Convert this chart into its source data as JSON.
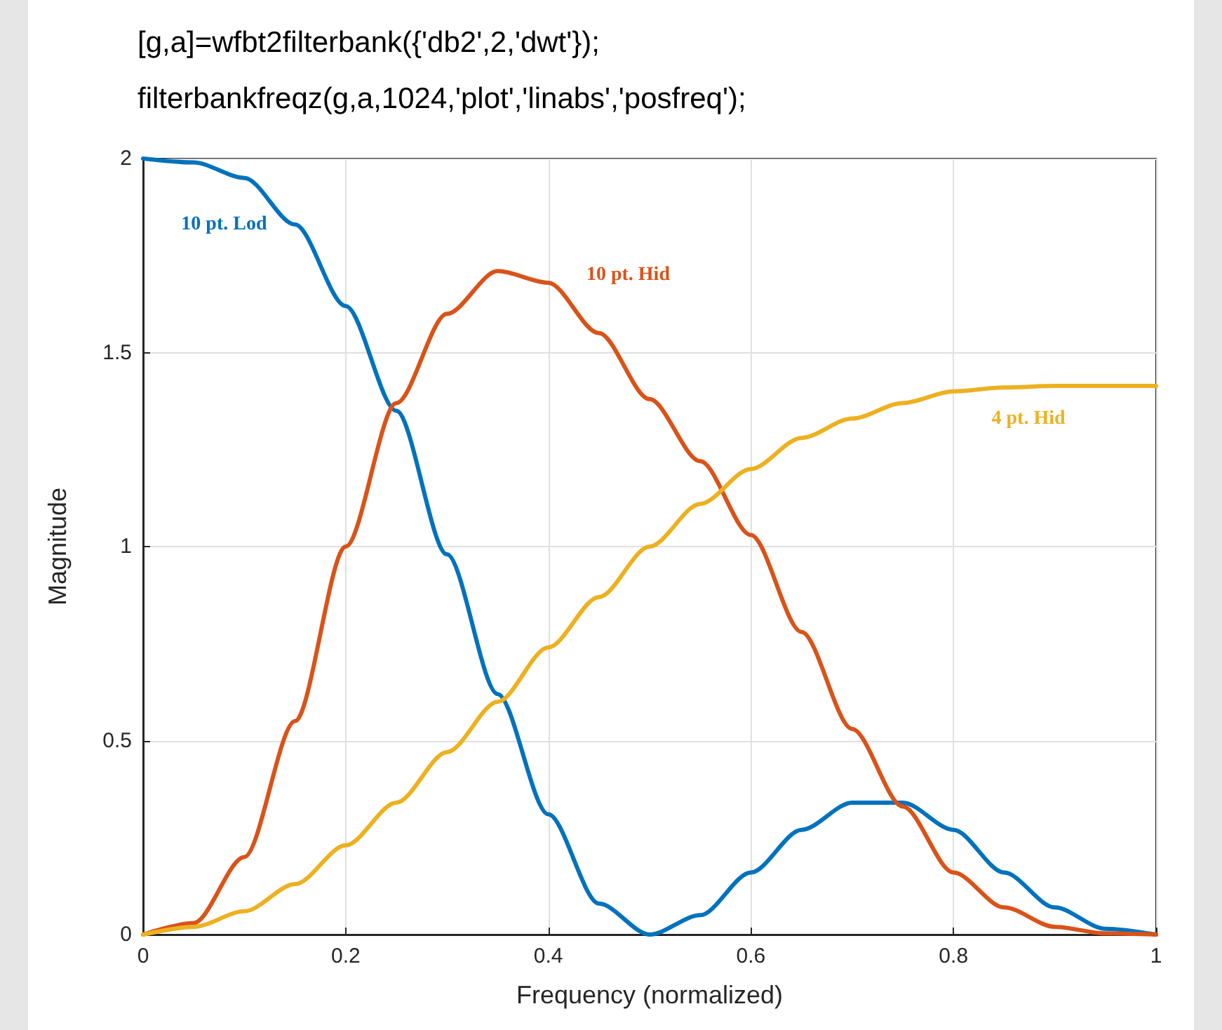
{
  "chart_data": {
    "type": "line",
    "xlabel": "Frequency (normalized)",
    "ylabel": "Magnitude",
    "annotations": [
      "[g,a]=wfbt2filterbank({'db2',2,'dwt'});",
      "filterbankfreqz(g,a,1024,'plot','linabs','posfreq');"
    ],
    "x": [
      0,
      0.05,
      0.1,
      0.15,
      0.2,
      0.25,
      0.3,
      0.35,
      0.4,
      0.45,
      0.5,
      0.55,
      0.6,
      0.65,
      0.7,
      0.75,
      0.8,
      0.85,
      0.9,
      0.95,
      1
    ],
    "series": [
      {
        "name": "10 pt. Lod",
        "color": "#0072bd",
        "values": [
          2,
          1.99,
          1.95,
          1.83,
          1.62,
          1.35,
          0.98,
          0.62,
          0.31,
          0.08,
          0,
          0.05,
          0.16,
          0.27,
          0.34,
          0.34,
          0.27,
          0.16,
          0.07,
          0.015,
          0
        ]
      },
      {
        "name": "10 pt. Hid",
        "color": "#d95319",
        "values": [
          0,
          0.03,
          0.2,
          0.55,
          1.0,
          1.37,
          1.6,
          1.71,
          1.68,
          1.55,
          1.38,
          1.22,
          1.03,
          0.78,
          0.53,
          0.33,
          0.16,
          0.07,
          0.02,
          0.003,
          0
        ]
      },
      {
        "name": "4 pt. Hid",
        "color": "#edb120",
        "values": [
          0,
          0.02,
          0.06,
          0.13,
          0.23,
          0.34,
          0.47,
          0.6,
          0.74,
          0.87,
          1.0,
          1.11,
          1.2,
          1.28,
          1.33,
          1.37,
          1.4,
          1.41,
          1.414,
          1.414,
          1.414
        ]
      }
    ],
    "xlim": [
      0,
      1
    ],
    "xticks": [
      0,
      0.2,
      0.4,
      0.6,
      0.8,
      1
    ],
    "ylim": [
      0,
      2
    ],
    "yticks": [
      0,
      0.5,
      1,
      1.5,
      2
    ],
    "grid": true,
    "marker": "none",
    "line_style": "solid",
    "legend": false
  }
}
